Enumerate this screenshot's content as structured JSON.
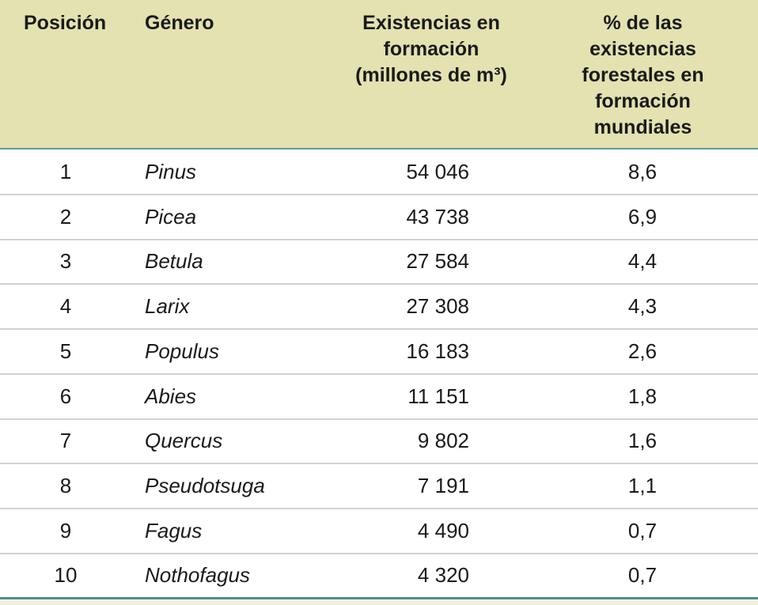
{
  "headers": {
    "position": "Posición",
    "genus": "Género",
    "stock": "Existencias en formación (millones de m³)",
    "percent": "% de las existencias forestales en formación mundiales"
  },
  "rows": [
    {
      "pos": "1",
      "genus": "Pinus",
      "stock": "54 046",
      "pct": "8,6"
    },
    {
      "pos": "2",
      "genus": "Picea",
      "stock": "43 738",
      "pct": "6,9"
    },
    {
      "pos": "3",
      "genus": "Betula",
      "stock": "27 584",
      "pct": "4,4"
    },
    {
      "pos": "4",
      "genus": "Larix",
      "stock": "27 308",
      "pct": "4,3"
    },
    {
      "pos": "5",
      "genus": "Populus",
      "stock": "16 183",
      "pct": "2,6"
    },
    {
      "pos": "6",
      "genus": "Abies",
      "stock": "11 151",
      "pct": "1,8"
    },
    {
      "pos": "7",
      "genus": "Quercus",
      "stock": "9 802",
      "pct": "1,6"
    },
    {
      "pos": "8",
      "genus": "Pseudotsuga",
      "stock": "7 191",
      "pct": "1,1"
    },
    {
      "pos": "9",
      "genus": "Fagus",
      "stock": "4 490",
      "pct": "0,7"
    },
    {
      "pos": "10",
      "genus": "Nothofagus",
      "stock": "4 320",
      "pct": "0,7"
    }
  ]
}
